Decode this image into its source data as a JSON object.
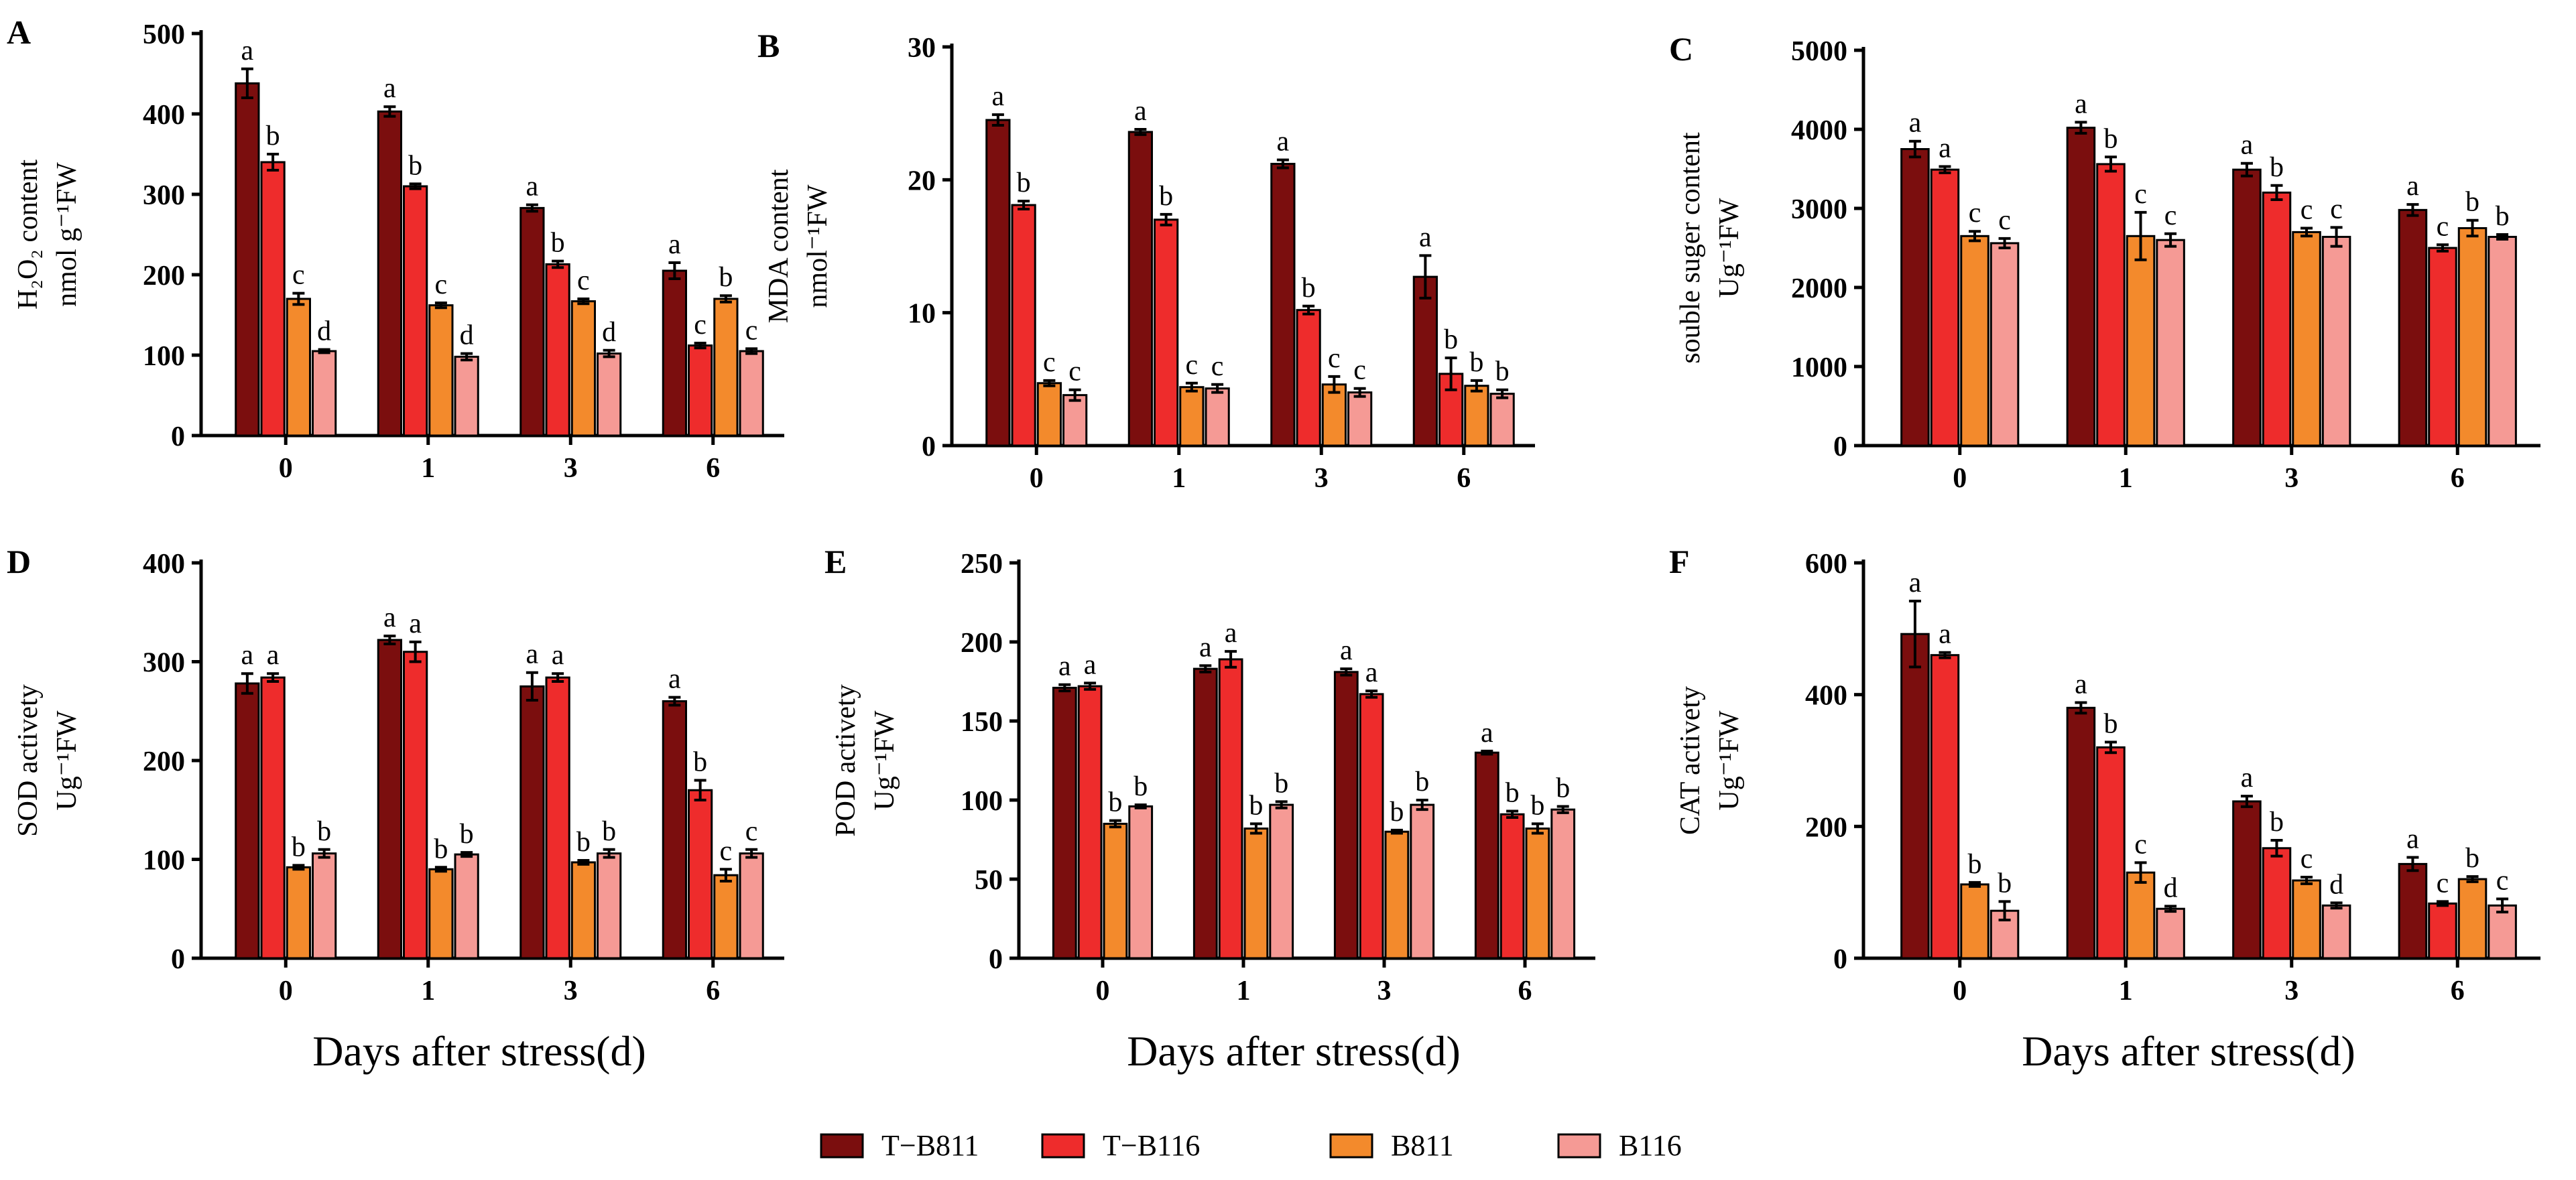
{
  "figure": {
    "xlabel": "Days  after  stress(d)"
  },
  "legend": {
    "items": [
      {
        "label": "T−B811",
        "color": "#7B0E0E"
      },
      {
        "label": "T−B116",
        "color": "#EE2C2C"
      },
      {
        "label": "B811",
        "color": "#F38A2C"
      },
      {
        "label": "B116",
        "color": "#F59A95"
      }
    ]
  },
  "chart_data": [
    {
      "type": "bar",
      "panel": "A",
      "ylabel_lines": [
        "H₂O₂ content",
        "nmol g⁻¹FW"
      ],
      "categories": [
        "0",
        "1",
        "3",
        "6"
      ],
      "ylim": [
        0,
        500
      ],
      "yticks": [
        0,
        100,
        200,
        300,
        400,
        500
      ],
      "show_xlabel": false,
      "series": [
        {
          "name": "T−B811",
          "values": [
            438,
            403,
            283,
            205
          ],
          "errors": [
            18,
            6,
            4,
            10
          ],
          "letters": [
            "a",
            "a",
            "a",
            "a"
          ]
        },
        {
          "name": "T−B116",
          "values": [
            340,
            310,
            213,
            112
          ],
          "errors": [
            10,
            3,
            4,
            3
          ],
          "letters": [
            "b",
            "b",
            "b",
            "c"
          ]
        },
        {
          "name": "B811",
          "values": [
            170,
            162,
            167,
            170
          ],
          "errors": [
            7,
            3,
            3,
            4
          ],
          "letters": [
            "c",
            "c",
            "c",
            "b"
          ]
        },
        {
          "name": "B116",
          "values": [
            105,
            98,
            102,
            105
          ],
          "errors": [
            2,
            4,
            4,
            3
          ],
          "letters": [
            "d",
            "d",
            "d",
            "c"
          ]
        }
      ]
    },
    {
      "type": "bar",
      "panel": "B",
      "ylabel_lines": [
        "MDA content",
        "nmol⁻¹FW"
      ],
      "categories": [
        "0",
        "1",
        "3",
        "6"
      ],
      "ylim": [
        0,
        30
      ],
      "yticks": [
        0,
        10,
        20,
        30
      ],
      "show_xlabel": false,
      "series": [
        {
          "name": "T−B811",
          "values": [
            24.5,
            23.6,
            21.2,
            12.7
          ],
          "errors": [
            0.4,
            0.2,
            0.3,
            1.6
          ],
          "letters": [
            "a",
            "a",
            "a",
            "a"
          ]
        },
        {
          "name": "T−B116",
          "values": [
            18.1,
            17.0,
            10.2,
            5.4
          ],
          "errors": [
            0.3,
            0.4,
            0.3,
            1.2
          ],
          "letters": [
            "b",
            "b",
            "b",
            "b"
          ]
        },
        {
          "name": "B811",
          "values": [
            4.7,
            4.4,
            4.6,
            4.5
          ],
          "errors": [
            0.2,
            0.3,
            0.6,
            0.4
          ],
          "letters": [
            "c",
            "c",
            "c",
            "b"
          ]
        },
        {
          "name": "B116",
          "values": [
            3.8,
            4.3,
            4.0,
            3.9
          ],
          "errors": [
            0.4,
            0.3,
            0.3,
            0.3
          ],
          "letters": [
            "c",
            "c",
            "c",
            "b"
          ]
        }
      ]
    },
    {
      "type": "bar",
      "panel": "C",
      "ylabel_lines": [
        "souble suger content",
        "Ug⁻¹FW"
      ],
      "categories": [
        "0",
        "1",
        "3",
        "6"
      ],
      "ylim": [
        0,
        5000
      ],
      "yticks": [
        0,
        1000,
        2000,
        3000,
        4000,
        5000
      ],
      "show_xlabel": false,
      "series": [
        {
          "name": "T−B811",
          "values": [
            3750,
            4020,
            3490,
            2980
          ],
          "errors": [
            100,
            70,
            80,
            70
          ],
          "letters": [
            "a",
            "a",
            "a",
            "a"
          ]
        },
        {
          "name": "T−B116",
          "values": [
            3490,
            3560,
            3200,
            2500
          ],
          "errors": [
            40,
            90,
            90,
            40
          ],
          "letters": [
            "a",
            "b",
            "b",
            "c"
          ]
        },
        {
          "name": "B811",
          "values": [
            2650,
            2650,
            2700,
            2750
          ],
          "errors": [
            60,
            300,
            50,
            100
          ],
          "letters": [
            "c",
            "c",
            "c",
            "b"
          ]
        },
        {
          "name": "B116",
          "values": [
            2560,
            2600,
            2640,
            2640
          ],
          "errors": [
            60,
            80,
            120,
            30
          ],
          "letters": [
            "c",
            "c",
            "c",
            "b"
          ]
        }
      ]
    },
    {
      "type": "bar",
      "panel": "D",
      "ylabel_lines": [
        "SOD activety",
        "Ug⁻¹FW"
      ],
      "categories": [
        "0",
        "1",
        "3",
        "6"
      ],
      "ylim": [
        0,
        400
      ],
      "yticks": [
        0,
        100,
        200,
        300,
        400
      ],
      "show_xlabel": true,
      "series": [
        {
          "name": "T−B811",
          "values": [
            278,
            322,
            275,
            260
          ],
          "errors": [
            10,
            4,
            14,
            4
          ],
          "letters": [
            "a",
            "a",
            "a",
            "a"
          ]
        },
        {
          "name": "T−B116",
          "values": [
            284,
            310,
            284,
            170
          ],
          "errors": [
            4,
            10,
            4,
            10
          ],
          "letters": [
            "a",
            "a",
            "a",
            "b"
          ]
        },
        {
          "name": "B811",
          "values": [
            92,
            90,
            97,
            84
          ],
          "errors": [
            2,
            2,
            2,
            6
          ],
          "letters": [
            "b",
            "b",
            "b",
            "c"
          ]
        },
        {
          "name": "B116",
          "values": [
            106,
            105,
            106,
            106
          ],
          "errors": [
            4,
            2,
            4,
            4
          ],
          "letters": [
            "b",
            "b",
            "b",
            "c"
          ]
        }
      ]
    },
    {
      "type": "bar",
      "panel": "E",
      "ylabel_lines": [
        "POD activety",
        "Ug⁻¹FW"
      ],
      "categories": [
        "0",
        "1",
        "3",
        "6"
      ],
      "ylim": [
        0,
        250
      ],
      "yticks": [
        0,
        50,
        100,
        150,
        200,
        250
      ],
      "show_xlabel": true,
      "series": [
        {
          "name": "T−B811",
          "values": [
            171,
            183,
            181,
            130
          ],
          "errors": [
            2,
            2,
            2,
            1
          ],
          "letters": [
            "a",
            "a",
            "a",
            "a"
          ]
        },
        {
          "name": "T−B116",
          "values": [
            172,
            189,
            167,
            91
          ],
          "errors": [
            2,
            5,
            2,
            2
          ],
          "letters": [
            "a",
            "a",
            "a",
            "b"
          ]
        },
        {
          "name": "B811",
          "values": [
            85,
            82,
            80,
            82
          ],
          "errors": [
            2,
            3,
            1,
            3
          ],
          "letters": [
            "b",
            "b",
            "b",
            "b"
          ]
        },
        {
          "name": "B116",
          "values": [
            96,
            97,
            97,
            94
          ],
          "errors": [
            1,
            2,
            3,
            2
          ],
          "letters": [
            "b",
            "b",
            "b",
            "b"
          ]
        }
      ]
    },
    {
      "type": "bar",
      "panel": "F",
      "ylabel_lines": [
        "CAT activety",
        "Ug⁻¹FW"
      ],
      "categories": [
        "0",
        "1",
        "3",
        "6"
      ],
      "ylim": [
        0,
        600
      ],
      "yticks": [
        0,
        200,
        400,
        600
      ],
      "show_xlabel": true,
      "series": [
        {
          "name": "T−B811",
          "values": [
            492,
            380,
            238,
            143
          ],
          "errors": [
            50,
            8,
            8,
            10
          ],
          "letters": [
            "a",
            "a",
            "a",
            "a"
          ]
        },
        {
          "name": "T−B116",
          "values": [
            460,
            320,
            167,
            83
          ],
          "errors": [
            4,
            8,
            12,
            3
          ],
          "letters": [
            "a",
            "b",
            "b",
            "c"
          ]
        },
        {
          "name": "B811",
          "values": [
            112,
            130,
            118,
            120
          ],
          "errors": [
            3,
            15,
            5,
            4
          ],
          "letters": [
            "b",
            "c",
            "c",
            "b"
          ]
        },
        {
          "name": "B116",
          "values": [
            72,
            75,
            80,
            80
          ],
          "errors": [
            14,
            4,
            4,
            10
          ],
          "letters": [
            "b",
            "d",
            "d",
            "c"
          ]
        }
      ]
    }
  ]
}
